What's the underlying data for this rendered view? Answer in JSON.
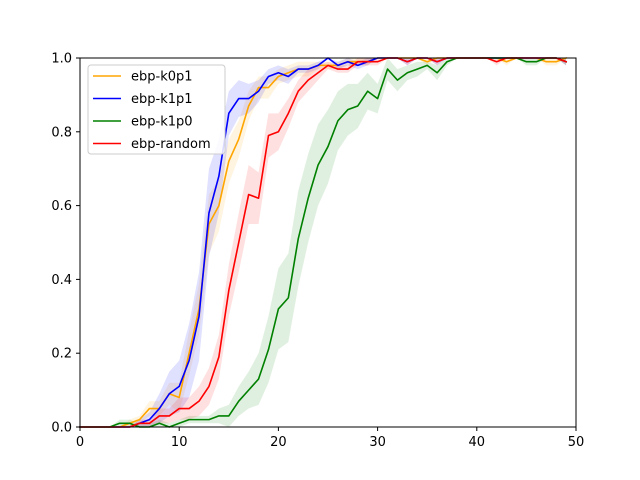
{
  "chart_data": {
    "type": "line",
    "title": "",
    "xlabel": "",
    "ylabel": "",
    "xlim": [
      0,
      50
    ],
    "ylim": [
      0,
      1.0
    ],
    "xticks": [
      0,
      10,
      20,
      30,
      40,
      50
    ],
    "yticks": [
      0.0,
      0.2,
      0.4,
      0.6,
      0.8,
      1.0
    ],
    "xtick_labels": [
      "0",
      "10",
      "20",
      "30",
      "40",
      "50"
    ],
    "ytick_labels": [
      "0.0",
      "0.2",
      "0.4",
      "0.6",
      "0.8",
      "1.0"
    ],
    "grid": false,
    "legend_position": "top-left",
    "x": [
      0,
      1,
      2,
      3,
      4,
      5,
      6,
      7,
      8,
      9,
      10,
      11,
      12,
      13,
      14,
      15,
      16,
      17,
      18,
      19,
      20,
      21,
      22,
      23,
      24,
      25,
      26,
      27,
      28,
      29,
      30,
      31,
      32,
      33,
      34,
      35,
      36,
      37,
      38,
      39,
      40,
      41,
      42,
      43,
      44,
      45,
      46,
      47,
      48,
      49
    ],
    "series": [
      {
        "name": "ebp-k0p1",
        "color": "#ffa500",
        "values": [
          0.0,
          0.0,
          0.0,
          0.0,
          0.0,
          0.01,
          0.02,
          0.05,
          0.05,
          0.09,
          0.08,
          0.2,
          0.32,
          0.55,
          0.6,
          0.72,
          0.78,
          0.87,
          0.92,
          0.92,
          0.95,
          0.96,
          0.97,
          0.97,
          0.98,
          0.98,
          0.98,
          0.99,
          0.99,
          0.99,
          1.0,
          1.0,
          1.0,
          1.0,
          1.0,
          0.99,
          1.0,
          1.0,
          1.0,
          1.0,
          1.0,
          1.0,
          1.0,
          0.99,
          1.0,
          1.0,
          1.0,
          0.99,
          0.99,
          1.0
        ],
        "band": [
          0.0,
          0.0,
          0.0,
          0.0,
          0.0,
          0.01,
          0.01,
          0.02,
          0.02,
          0.03,
          0.04,
          0.06,
          0.07,
          0.08,
          0.07,
          0.06,
          0.05,
          0.04,
          0.03,
          0.03,
          0.02,
          0.02,
          0.02,
          0.02,
          0.01,
          0.01,
          0.01,
          0.01,
          0.01,
          0.01,
          0.0,
          0.0,
          0.0,
          0.0,
          0.0,
          0.01,
          0.0,
          0.0,
          0.0,
          0.0,
          0.0,
          0.0,
          0.0,
          0.01,
          0.0,
          0.0,
          0.0,
          0.01,
          0.01,
          0.0
        ]
      },
      {
        "name": "ebp-k1p1",
        "color": "#0000ff",
        "values": [
          0.0,
          0.0,
          0.0,
          0.0,
          0.0,
          0.0,
          0.01,
          0.02,
          0.05,
          0.09,
          0.11,
          0.18,
          0.3,
          0.58,
          0.68,
          0.85,
          0.89,
          0.89,
          0.91,
          0.95,
          0.96,
          0.95,
          0.97,
          0.97,
          0.98,
          1.0,
          0.98,
          0.99,
          0.98,
          0.99,
          1.0,
          1.0,
          1.0,
          0.99,
          1.0,
          1.0,
          0.99,
          1.0,
          1.0,
          1.0,
          1.0,
          1.0,
          1.0,
          1.0,
          1.0,
          1.0,
          1.0,
          1.0,
          1.0,
          0.99
        ],
        "band": [
          0.0,
          0.0,
          0.0,
          0.0,
          0.0,
          0.0,
          0.01,
          0.02,
          0.04,
          0.06,
          0.07,
          0.1,
          0.12,
          0.12,
          0.1,
          0.06,
          0.05,
          0.04,
          0.03,
          0.02,
          0.02,
          0.02,
          0.01,
          0.01,
          0.01,
          0.0,
          0.01,
          0.01,
          0.01,
          0.01,
          0.0,
          0.0,
          0.0,
          0.01,
          0.0,
          0.0,
          0.01,
          0.0,
          0.0,
          0.0,
          0.0,
          0.0,
          0.0,
          0.0,
          0.0,
          0.0,
          0.0,
          0.0,
          0.0,
          0.01
        ]
      },
      {
        "name": "ebp-k1p0",
        "color": "#008000",
        "values": [
          0.0,
          0.0,
          0.0,
          0.0,
          0.01,
          0.01,
          0.0,
          0.0,
          0.01,
          0.0,
          0.01,
          0.02,
          0.02,
          0.02,
          0.03,
          0.03,
          0.07,
          0.1,
          0.13,
          0.21,
          0.32,
          0.35,
          0.51,
          0.62,
          0.71,
          0.76,
          0.83,
          0.86,
          0.87,
          0.91,
          0.89,
          0.97,
          0.94,
          0.96,
          0.97,
          0.98,
          0.96,
          0.99,
          1.0,
          1.0,
          1.0,
          1.0,
          1.0,
          1.0,
          1.0,
          0.99,
          0.99,
          1.0,
          1.0,
          0.99
        ],
        "band": [
          0.0,
          0.0,
          0.0,
          0.0,
          0.01,
          0.01,
          0.01,
          0.01,
          0.01,
          0.01,
          0.01,
          0.01,
          0.01,
          0.01,
          0.02,
          0.03,
          0.04,
          0.05,
          0.07,
          0.09,
          0.11,
          0.12,
          0.13,
          0.12,
          0.11,
          0.1,
          0.08,
          0.07,
          0.06,
          0.05,
          0.04,
          0.03,
          0.03,
          0.02,
          0.02,
          0.01,
          0.02,
          0.01,
          0.0,
          0.0,
          0.0,
          0.0,
          0.0,
          0.0,
          0.0,
          0.01,
          0.01,
          0.0,
          0.0,
          0.01
        ]
      },
      {
        "name": "ebp-random",
        "color": "#ff0000",
        "values": [
          0.0,
          0.0,
          0.0,
          0.0,
          0.0,
          0.0,
          0.01,
          0.01,
          0.03,
          0.03,
          0.05,
          0.05,
          0.07,
          0.11,
          0.19,
          0.37,
          0.5,
          0.63,
          0.62,
          0.79,
          0.8,
          0.85,
          0.91,
          0.94,
          0.96,
          0.98,
          0.97,
          0.97,
          0.99,
          0.99,
          0.99,
          1.0,
          1.0,
          0.99,
          1.0,
          1.0,
          0.99,
          1.0,
          1.0,
          1.0,
          1.0,
          1.0,
          0.99,
          1.0,
          1.0,
          1.0,
          1.0,
          1.0,
          1.0,
          0.99
        ],
        "band": [
          0.0,
          0.0,
          0.0,
          0.0,
          0.0,
          0.0,
          0.01,
          0.01,
          0.02,
          0.02,
          0.03,
          0.03,
          0.04,
          0.05,
          0.06,
          0.07,
          0.08,
          0.08,
          0.07,
          0.06,
          0.05,
          0.04,
          0.03,
          0.03,
          0.02,
          0.01,
          0.01,
          0.01,
          0.01,
          0.01,
          0.01,
          0.0,
          0.0,
          0.01,
          0.0,
          0.0,
          0.01,
          0.0,
          0.0,
          0.0,
          0.0,
          0.0,
          0.01,
          0.0,
          0.0,
          0.0,
          0.0,
          0.0,
          0.0,
          0.01
        ]
      }
    ]
  }
}
